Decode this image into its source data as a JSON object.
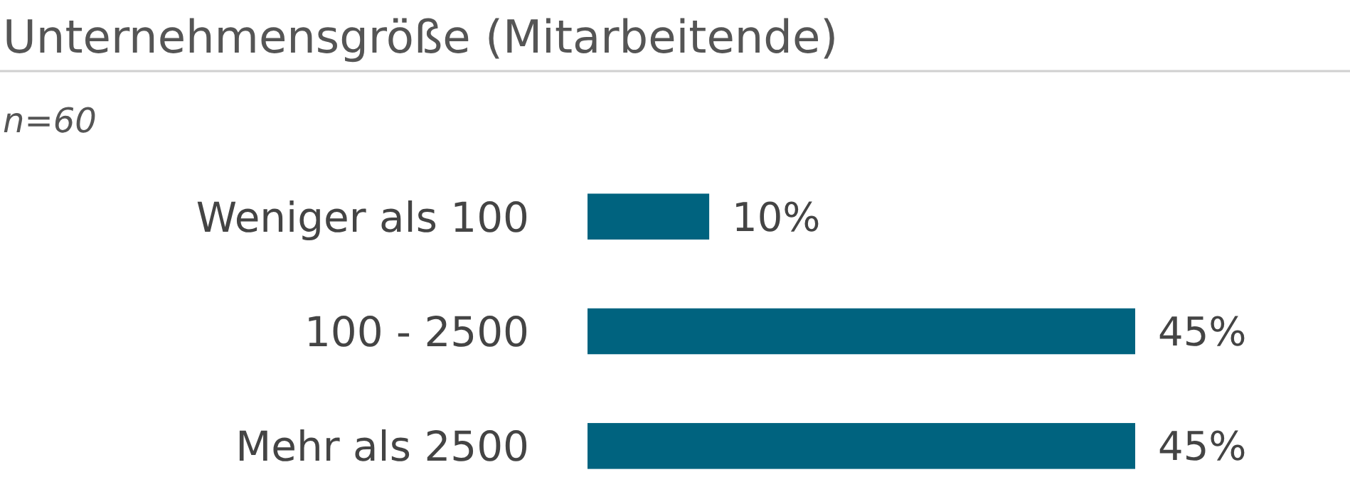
{
  "chart_data": {
    "type": "bar",
    "orientation": "horizontal",
    "title": "Unternehmensgröße (Mitarbeitende)",
    "subtitle": "n=60",
    "categories": [
      "Weniger als 100",
      "100 - 2500",
      "Mehr als 2500"
    ],
    "values": [
      10,
      45,
      45
    ],
    "value_labels": [
      "10%",
      "45%",
      "45%"
    ],
    "color": "#00637f"
  }
}
